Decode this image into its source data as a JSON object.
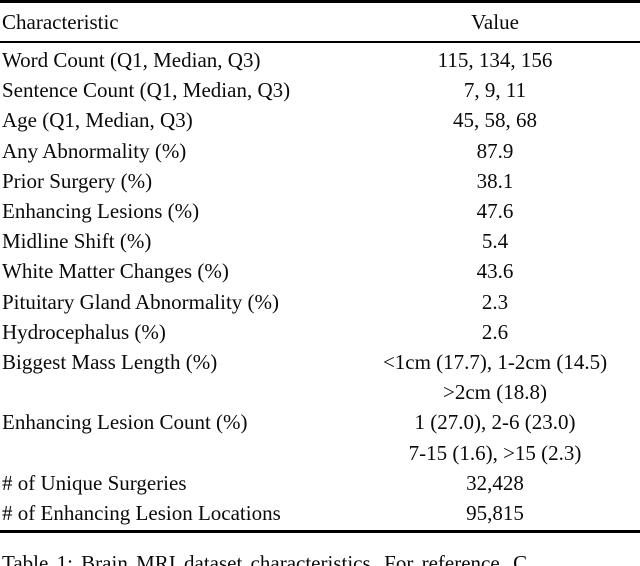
{
  "table": {
    "columns": {
      "characteristic": "Characteristic",
      "value": "Value"
    },
    "rows": [
      {
        "label": "Word Count (Q1, Median, Q3)",
        "value": "115, 134, 156"
      },
      {
        "label": "Sentence Count (Q1, Median, Q3)",
        "value": "7, 9, 11"
      },
      {
        "label": "Age (Q1, Median, Q3)",
        "value": "45, 58, 68"
      },
      {
        "label": "Any Abnormality (%)",
        "value": "87.9"
      },
      {
        "label": "Prior Surgery (%)",
        "value": "38.1"
      },
      {
        "label": "Enhancing Lesions (%)",
        "value": "47.6"
      },
      {
        "label": "Midline Shift (%)",
        "value": "5.4"
      },
      {
        "label": "White Matter Changes (%)",
        "value": "43.6"
      },
      {
        "label": "Pituitary Gland Abnormality (%)",
        "value": "2.3"
      },
      {
        "label": "Hydrocephalus (%)",
        "value": "2.6"
      },
      {
        "label": "Biggest Mass Length (%)",
        "value": "<1cm (17.7), 1-2cm (14.5)\n>2cm (18.8)"
      },
      {
        "label": "Enhancing Lesion Count (%)",
        "value": "1 (27.0), 2-6 (23.0)\n7-15 (1.6), >15 (2.3)"
      },
      {
        "label": "# of Unique Surgeries",
        "value": "32,428"
      },
      {
        "label": "# of Enhancing Lesion Locations",
        "value": "95,815"
      }
    ]
  },
  "caption": {
    "text": "Table 1: Brain MRI dataset characteristics. For reference, C"
  },
  "colors": {
    "background": "#ffffff",
    "text": "#0a0a0a",
    "rule": "#000000"
  }
}
